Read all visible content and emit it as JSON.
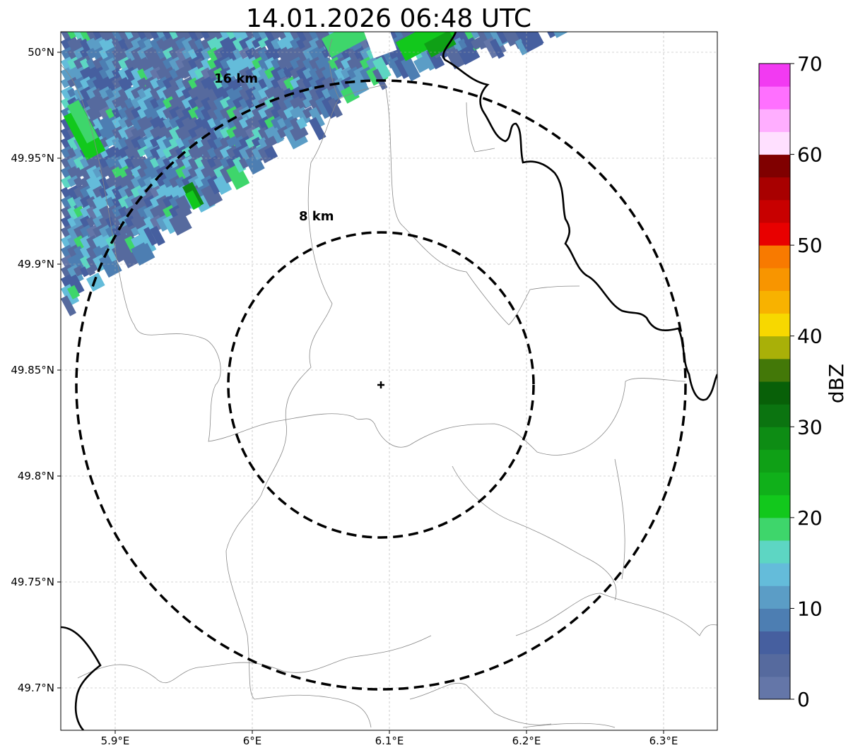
{
  "title": "14.01.2026 06:48 UTC",
  "map": {
    "x_ticks": [
      {
        "lon": 5.9,
        "label": "5.9°E"
      },
      {
        "lon": 6.0,
        "label": "6°E"
      },
      {
        "lon": 6.1,
        "label": "6.1°E"
      },
      {
        "lon": 6.2,
        "label": "6.2°E"
      },
      {
        "lon": 6.3,
        "label": "6.3°E"
      }
    ],
    "y_ticks": [
      {
        "lat": 50.0,
        "label": "50°N"
      },
      {
        "lat": 49.95,
        "label": "49.95°N"
      },
      {
        "lat": 49.9,
        "label": "49.9°N"
      },
      {
        "lat": 49.85,
        "label": "49.85°N"
      },
      {
        "lat": 49.8,
        "label": "49.8°N"
      },
      {
        "lat": 49.75,
        "label": "49.75°N"
      },
      {
        "lat": 49.7,
        "label": "49.7°N"
      }
    ],
    "grid": true,
    "radar_site": {
      "lon": 6.0955,
      "lat": 49.8435
    },
    "range_rings": [
      {
        "radius_km": 8,
        "label": "8 km"
      },
      {
        "radius_km": 16,
        "label": "16 km"
      }
    ]
  },
  "colorbar": {
    "label": "dBZ",
    "min": 0,
    "max": 70,
    "step": 2.5,
    "ticks": [
      0,
      10,
      20,
      30,
      40,
      50,
      60,
      70
    ],
    "colors": [
      "#6476a8",
      "#566a9e",
      "#465f9f",
      "#4d7eb2",
      "#5b9dc6",
      "#64bcda",
      "#5dd6c3",
      "#3ed66b",
      "#12c81c",
      "#10b01a",
      "#0fa016",
      "#0d8c14",
      "#0b7410",
      "#086008",
      "#437808",
      "#a9b008",
      "#f7d800",
      "#f8b200",
      "#f89500",
      "#f87a00",
      "#e80000",
      "#c80000",
      "#a80000",
      "#800000",
      "#ffe0ff",
      "#ffaeff",
      "#ff70ff",
      "#f23af2"
    ]
  }
}
